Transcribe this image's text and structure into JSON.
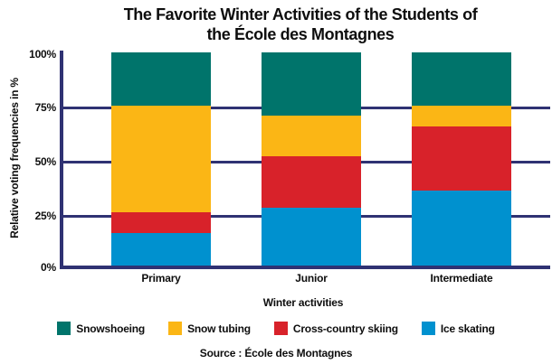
{
  "title": {
    "line1": "The Favorite Winter Activities of the Students of",
    "line2": "the École des Montagnes"
  },
  "y_axis": {
    "label": "Relative voting frequencies in %",
    "ticks": [
      "100%",
      "75%",
      "50%",
      "25%",
      "0%"
    ]
  },
  "x_axis": {
    "label": "Winter activities"
  },
  "source": "Source : École des Montagnes",
  "colors": {
    "grid": "#2F3273",
    "snowshoeing": "#00746B",
    "snow_tubing": "#FBB615",
    "cross_country_skiing": "#D8222A",
    "ice_skating": "#0091CF"
  },
  "legend": [
    {
      "label": "Snowshoeing",
      "color": "#00746B"
    },
    {
      "label": "Snow tubing",
      "color": "#FBB615"
    },
    {
      "label": "Cross-country skiing",
      "color": "#D8222A"
    },
    {
      "label": "Ice skating",
      "color": "#0091CF"
    }
  ],
  "chart_data": {
    "type": "bar",
    "subtype": "stacked-100",
    "title": "The Favorite Winter Activities of the Students of the École des Montagnes",
    "xlabel": "Winter activities",
    "ylabel": "Relative voting frequencies in %",
    "ylim": [
      0,
      100
    ],
    "ytick_interval": 25,
    "unit": "%",
    "grid": "horizontal",
    "legend_position": "bottom",
    "categories": [
      "Primary",
      "Junior",
      "Intermediate"
    ],
    "series": [
      {
        "name": "Ice skating",
        "color": "#0091CF",
        "values": [
          15,
          27,
          35
        ]
      },
      {
        "name": "Cross-country skiing",
        "color": "#D8222A",
        "values": [
          10,
          24,
          30
        ]
      },
      {
        "name": "Snow tubing",
        "color": "#FBB615",
        "values": [
          50,
          19,
          10
        ]
      },
      {
        "name": "Snowshoeing",
        "color": "#00746B",
        "values": [
          25,
          30,
          25
        ]
      }
    ]
  }
}
